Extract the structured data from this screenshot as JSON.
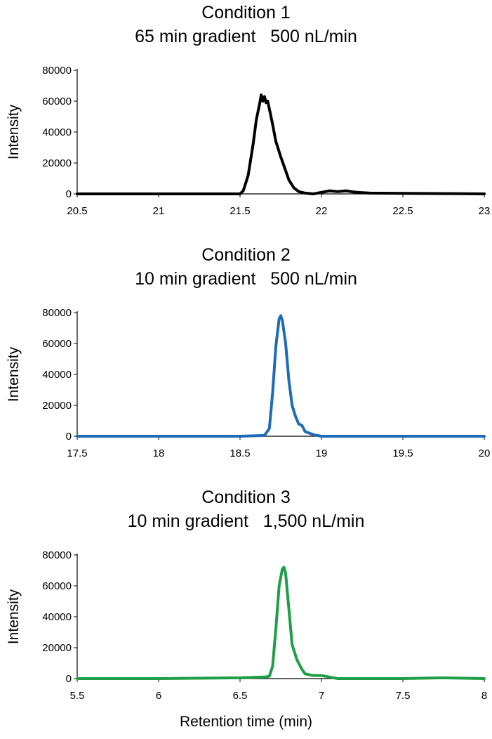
{
  "chart_data": [
    {
      "type": "line",
      "title_lines": [
        "Condition 1",
        "65 min gradient   500 nL/min"
      ],
      "ylabel": "Intensity",
      "xlabel": "",
      "xlim": [
        20.5,
        23
      ],
      "ylim": [
        0,
        80000
      ],
      "xticks": [
        "20.5",
        "21",
        "21.5",
        "22",
        "22.5",
        "23"
      ],
      "yticks": [
        "0",
        "20000",
        "40000",
        "60000",
        "80000"
      ],
      "series": [
        {
          "color": "#000000",
          "x": [
            20.5,
            21.0,
            21.5,
            21.52,
            21.55,
            21.58,
            21.6,
            21.62,
            21.63,
            21.64,
            21.65,
            21.66,
            21.67,
            21.68,
            21.7,
            21.72,
            21.75,
            21.78,
            21.8,
            21.83,
            21.86,
            21.9,
            21.95,
            22.0,
            22.05,
            22.1,
            22.15,
            22.2,
            22.25,
            22.3,
            22.5,
            22.8,
            23.0
          ],
          "y": [
            0,
            0,
            0,
            2000,
            12000,
            32000,
            48000,
            58000,
            64000,
            60000,
            63000,
            59000,
            60000,
            55000,
            45000,
            34000,
            24000,
            15000,
            9000,
            4000,
            1500,
            500,
            0,
            1000,
            2000,
            1500,
            2000,
            1200,
            800,
            500,
            300,
            200,
            0
          ]
        }
      ]
    },
    {
      "type": "line",
      "title_lines": [
        "Condition 2",
        "10 min gradient   500 nL/min"
      ],
      "ylabel": "Intensity",
      "xlabel": "",
      "xlim": [
        17.5,
        20
      ],
      "ylim": [
        0,
        80000
      ],
      "xticks": [
        "17.5",
        "18",
        "18.5",
        "19",
        "19.5",
        "20"
      ],
      "yticks": [
        "0",
        "20000",
        "40000",
        "60000",
        "80000"
      ],
      "series": [
        {
          "color": "#1f6bb5",
          "x": [
            17.5,
            18.0,
            18.5,
            18.65,
            18.68,
            18.7,
            18.72,
            18.74,
            18.75,
            18.76,
            18.78,
            18.8,
            18.82,
            18.84,
            18.86,
            18.88,
            18.9,
            18.95,
            19.0,
            19.5,
            20.0
          ],
          "y": [
            0,
            0,
            0,
            500,
            5000,
            28000,
            58000,
            76000,
            78000,
            75000,
            60000,
            36000,
            20000,
            13000,
            8000,
            7000,
            3000,
            1000,
            0,
            0,
            0
          ]
        }
      ]
    },
    {
      "type": "line",
      "title_lines": [
        "Condition 3",
        "10 min gradient   1,500 nL/min"
      ],
      "ylabel": "Intensity",
      "xlabel": "Retention time (min)",
      "xlim": [
        5.5,
        8
      ],
      "ylim": [
        0,
        80000
      ],
      "xticks": [
        "5.5",
        "6",
        "6.5",
        "7",
        "7.5",
        "8"
      ],
      "yticks": [
        "0",
        "20000",
        "40000",
        "60000",
        "80000"
      ],
      "series": [
        {
          "color": "#1f9e48",
          "x": [
            5.5,
            6.0,
            6.5,
            6.65,
            6.68,
            6.7,
            6.72,
            6.74,
            6.76,
            6.77,
            6.78,
            6.8,
            6.82,
            6.85,
            6.88,
            6.9,
            6.95,
            7.0,
            7.05,
            7.1,
            7.5,
            7.75,
            8.0
          ],
          "y": [
            0,
            0,
            500,
            1000,
            1500,
            8000,
            32000,
            60000,
            71000,
            72000,
            68000,
            45000,
            22000,
            12000,
            6000,
            3000,
            2000,
            2000,
            1000,
            0,
            0,
            500,
            0
          ]
        }
      ]
    }
  ]
}
